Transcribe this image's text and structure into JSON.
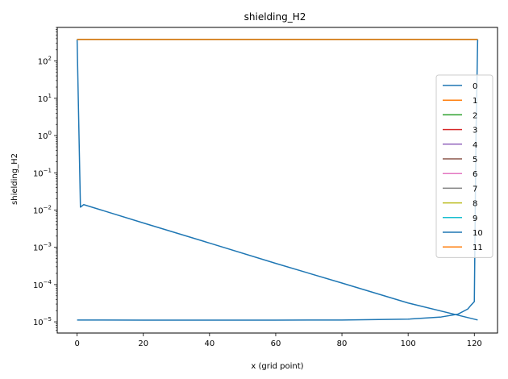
{
  "chart_data": {
    "type": "line",
    "title": "shielding_H2",
    "xlabel": "x (grid point)",
    "ylabel": "shielding_H2",
    "xlim": [
      -6,
      127
    ],
    "ylim": [
      5e-06,
      800
    ],
    "yscale": "log",
    "x_ticks": [
      0,
      20,
      40,
      60,
      80,
      100,
      120
    ],
    "y_ticks": [
      {
        "value": 1e-05,
        "base": "10",
        "exp": "−5"
      },
      {
        "value": 0.0001,
        "base": "10",
        "exp": "−4"
      },
      {
        "value": 0.001,
        "base": "10",
        "exp": "−3"
      },
      {
        "value": 0.01,
        "base": "10",
        "exp": "−2"
      },
      {
        "value": 0.1,
        "base": "10",
        "exp": "−1"
      },
      {
        "value": 1,
        "base": "10",
        "exp": "0"
      },
      {
        "value": 10,
        "base": "10",
        "exp": "1"
      },
      {
        "value": 100,
        "base": "10",
        "exp": "2"
      }
    ],
    "grid": false,
    "legend_position": "right",
    "series": [
      {
        "name": "0",
        "color": "#1f77b4",
        "x": [
          0,
          1,
          2,
          20,
          40,
          60,
          80,
          100,
          121
        ],
        "y": [
          380,
          0.012,
          0.014,
          0.0045,
          0.0013,
          0.00037,
          0.00011,
          3.2e-05,
          1.12e-05
        ]
      },
      {
        "name": "1",
        "color": "#ff7f0e",
        "x": [
          0,
          121
        ],
        "y": [
          380,
          380
        ]
      },
      {
        "name": "2",
        "color": "#2ca02c",
        "x": [
          0,
          121
        ],
        "y": [
          380,
          380
        ]
      },
      {
        "name": "3",
        "color": "#d62728",
        "x": [
          0,
          121
        ],
        "y": [
          380,
          380
        ]
      },
      {
        "name": "4",
        "color": "#9467bd",
        "x": [
          0,
          121
        ],
        "y": [
          380,
          380
        ]
      },
      {
        "name": "5",
        "color": "#8c564b",
        "x": [
          0,
          121
        ],
        "y": [
          380,
          380
        ]
      },
      {
        "name": "6",
        "color": "#e377c2",
        "x": [
          0,
          121
        ],
        "y": [
          380,
          380
        ]
      },
      {
        "name": "7",
        "color": "#7f7f7f",
        "x": [
          0,
          121
        ],
        "y": [
          380,
          380
        ]
      },
      {
        "name": "8",
        "color": "#bcbd22",
        "x": [
          0,
          121
        ],
        "y": [
          380,
          380
        ]
      },
      {
        "name": "9",
        "color": "#17becf",
        "x": [
          0,
          121
        ],
        "y": [
          380,
          380
        ]
      },
      {
        "name": "10",
        "color": "#1f77b4",
        "x": [
          0,
          20,
          40,
          60,
          80,
          100,
          110,
          115,
          118,
          119,
          120,
          120.5,
          121
        ],
        "y": [
          1.12e-05,
          1.11e-05,
          1.11e-05,
          1.11e-05,
          1.12e-05,
          1.18e-05,
          1.35e-05,
          1.6e-05,
          2.2e-05,
          2.8e-05,
          3.5e-05,
          1,
          380
        ]
      },
      {
        "name": "11",
        "color": "#ff7f0e",
        "x": [
          0,
          121
        ],
        "y": [
          380,
          380
        ]
      }
    ]
  }
}
